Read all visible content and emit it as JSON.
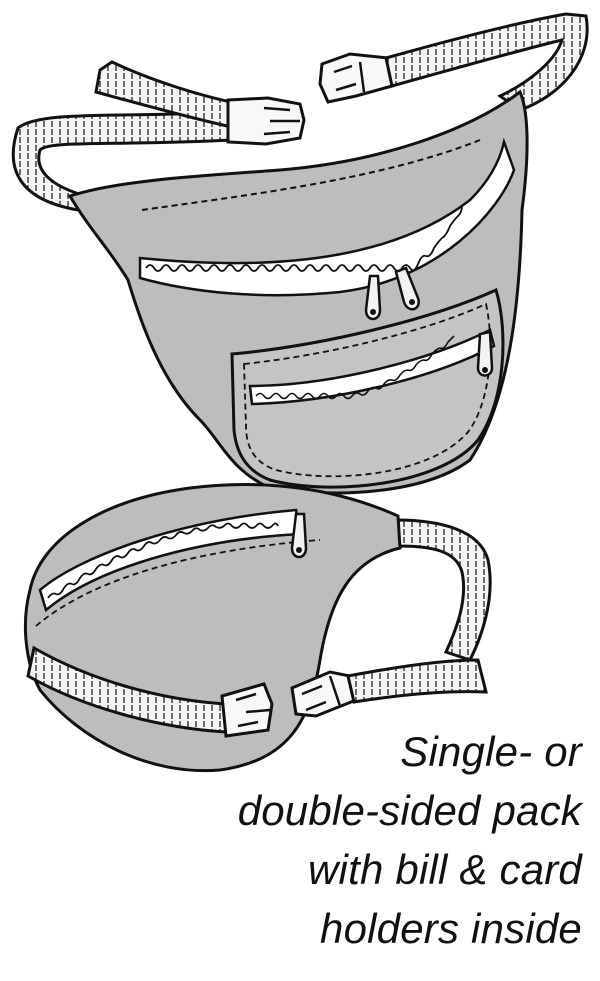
{
  "caption": {
    "lines": [
      "Single- or",
      "double-sided pack",
      "with bill & card",
      "holders inside"
    ]
  },
  "colors": {
    "fabric": "#bdbdbd",
    "strap": "#f4f4f4",
    "outline": "#111111",
    "zipper_tape": "#ffffff"
  }
}
